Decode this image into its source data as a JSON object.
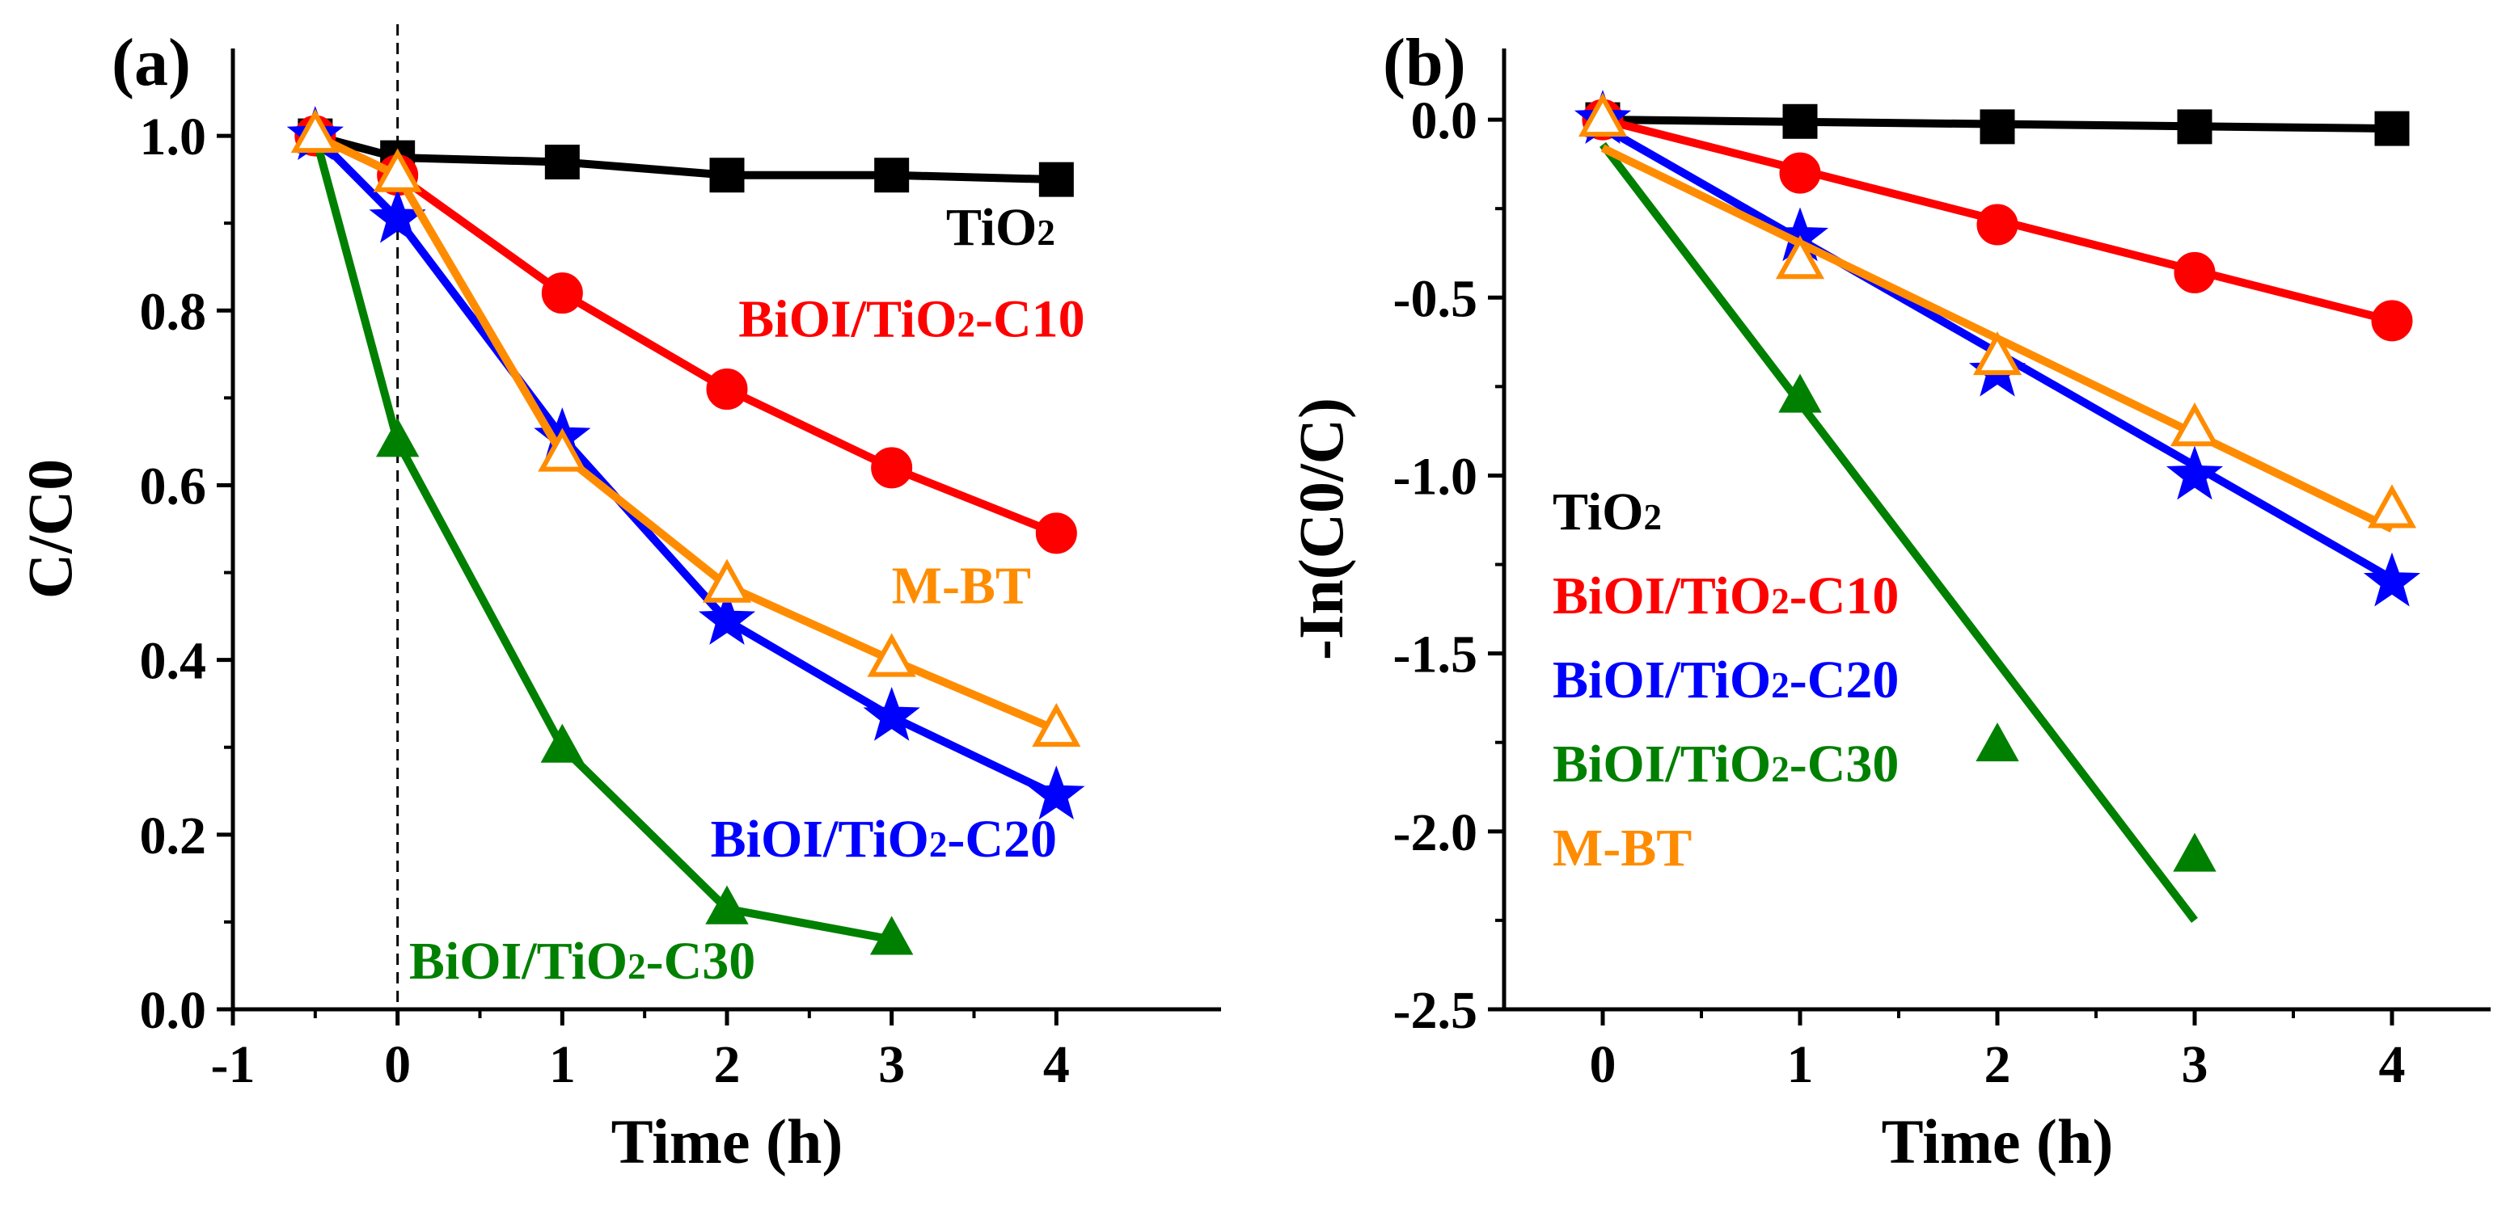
{
  "chart_data": [
    {
      "type": "line",
      "panel_label": "(a)",
      "xlabel": "Time (h)",
      "ylabel": "C/C0",
      "xlim": [
        -1,
        5
      ],
      "ylim": [
        0,
        1.1
      ],
      "xticks": [
        "-1",
        "0",
        "1",
        "2",
        "3",
        "4"
      ],
      "yticks": [
        "0.0",
        "0.2",
        "0.4",
        "0.6",
        "0.8",
        "1.0"
      ],
      "vline_x": 0,
      "series": [
        {
          "name": "TiO2",
          "color": "#000000",
          "marker": "square",
          "filled": true,
          "x": [
            -0.5,
            0,
            1,
            2,
            3,
            4
          ],
          "y": [
            1.0,
            0.975,
            0.97,
            0.955,
            0.955,
            0.95
          ]
        },
        {
          "name": "BiOI/TiO2-C10",
          "color": "#ff0000",
          "marker": "circle",
          "filled": true,
          "x": [
            -0.5,
            0,
            1,
            2,
            3,
            4
          ],
          "y": [
            1.0,
            0.955,
            0.82,
            0.71,
            0.62,
            0.545
          ]
        },
        {
          "name": "BiOI/TiO2-C20",
          "color": "#0000ff",
          "marker": "star",
          "filled": true,
          "x": [
            -0.5,
            0,
            1,
            2,
            3,
            4
          ],
          "y": [
            1.0,
            0.905,
            0.655,
            0.445,
            0.335,
            0.245
          ]
        },
        {
          "name": "BiOI/TiO2-C30",
          "color": "#008000",
          "marker": "triangle",
          "filled": true,
          "x": [
            -0.5,
            0,
            1,
            2,
            3
          ],
          "y": [
            1.0,
            0.65,
            0.3,
            0.115,
            0.08
          ]
        },
        {
          "name": "M-BT",
          "color": "#ff8c00",
          "marker": "triangle",
          "filled": false,
          "x": [
            -0.5,
            0,
            1,
            2,
            3,
            4
          ],
          "y": [
            1.0,
            0.955,
            0.635,
            0.485,
            0.4,
            0.32
          ]
        }
      ],
      "annotations": [
        {
          "base": "TiO",
          "sub": "2",
          "rest": "",
          "color": "#000000",
          "x": 3.33,
          "y": 0.875
        },
        {
          "base": "BiOI/TiO",
          "sub": "2",
          "rest": "-C10",
          "color": "#ff0000",
          "x": 2.07,
          "y": 0.77
        },
        {
          "base": "M-BT",
          "sub": "",
          "rest": "",
          "color": "#ff8c00",
          "x": 3.0,
          "y": 0.465
        },
        {
          "base": "BiOI/TiO",
          "sub": "2",
          "rest": "-C20",
          "color": "#0000ff",
          "x": 1.9,
          "y": 0.175
        },
        {
          "base": "BiOI/TiO",
          "sub": "2",
          "rest": "-C30",
          "color": "#008000",
          "x": 0.07,
          "y": 0.035
        }
      ]
    },
    {
      "type": "scatter",
      "panel_label": "(b)",
      "xlabel": "Time (h)",
      "ylabel": "-In(C0/C)",
      "xlim": [
        -0.5,
        4.5
      ],
      "ylim": [
        -2.5,
        0.2
      ],
      "xticks": [
        "0",
        "1",
        "2",
        "3",
        "4"
      ],
      "yticks": [
        "0.0",
        "-0.5",
        "-1.0",
        "-1.5",
        "-2.0",
        "-2.5"
      ],
      "series": [
        {
          "name": "TiO2",
          "color": "#000000",
          "marker": "square",
          "filled": true,
          "x": [
            0,
            1,
            2,
            3,
            4
          ],
          "y": [
            0.0,
            -0.005,
            -0.02,
            -0.02,
            -0.025
          ],
          "fit": {
            "x": [
              0,
              4
            ],
            "y": [
              0.0,
              -0.025
            ]
          }
        },
        {
          "name": "BiOI/TiO2-C10",
          "color": "#ff0000",
          "marker": "circle",
          "filled": true,
          "x": [
            0,
            1,
            2,
            3,
            4
          ],
          "y": [
            0.0,
            -0.15,
            -0.295,
            -0.43,
            -0.565
          ],
          "fit": {
            "x": [
              0,
              4
            ],
            "y": [
              0.0,
              -0.565
            ]
          }
        },
        {
          "name": "BiOI/TiO2-C20",
          "color": "#0000ff",
          "marker": "star",
          "filled": true,
          "x": [
            0,
            1,
            2,
            3,
            4
          ],
          "y": [
            0.0,
            -0.33,
            -0.71,
            -1.0,
            -1.3
          ],
          "fit": {
            "x": [
              0,
              4
            ],
            "y": [
              -0.02,
              -1.29
            ]
          }
        },
        {
          "name": "BiOI/TiO2-C30",
          "color": "#008000",
          "marker": "triangle",
          "filled": true,
          "x": [
            0,
            1,
            2,
            3
          ],
          "y": [
            0.0,
            -0.78,
            -1.76,
            -2.07
          ],
          "fit": {
            "x": [
              0,
              3
            ],
            "y": [
              -0.07,
              -2.25
            ]
          }
        },
        {
          "name": "M-BT",
          "color": "#ff8c00",
          "marker": "triangle",
          "filled": false,
          "x": [
            0,
            1,
            2,
            3,
            4
          ],
          "y": [
            0.0,
            -0.4,
            -0.67,
            -0.87,
            -1.1
          ],
          "fit": {
            "x": [
              0,
              4
            ],
            "y": [
              -0.08,
              -1.15
            ]
          }
        }
      ],
      "legend": {
        "position": "left-middle",
        "entries": [
          {
            "base": "TiO",
            "sub": "2",
            "rest": "",
            "color": "#000000"
          },
          {
            "base": "BiOI/TiO",
            "sub": "2",
            "rest": "-C10",
            "color": "#ff0000"
          },
          {
            "base": "BiOI/TiO",
            "sub": "2",
            "rest": "-C20",
            "color": "#0000ff"
          },
          {
            "base": "BiOI/TiO",
            "sub": "2",
            "rest": "-C30",
            "color": "#008000"
          },
          {
            "base": "M-BT",
            "sub": "",
            "rest": "",
            "color": "#ff8c00"
          }
        ]
      }
    }
  ]
}
